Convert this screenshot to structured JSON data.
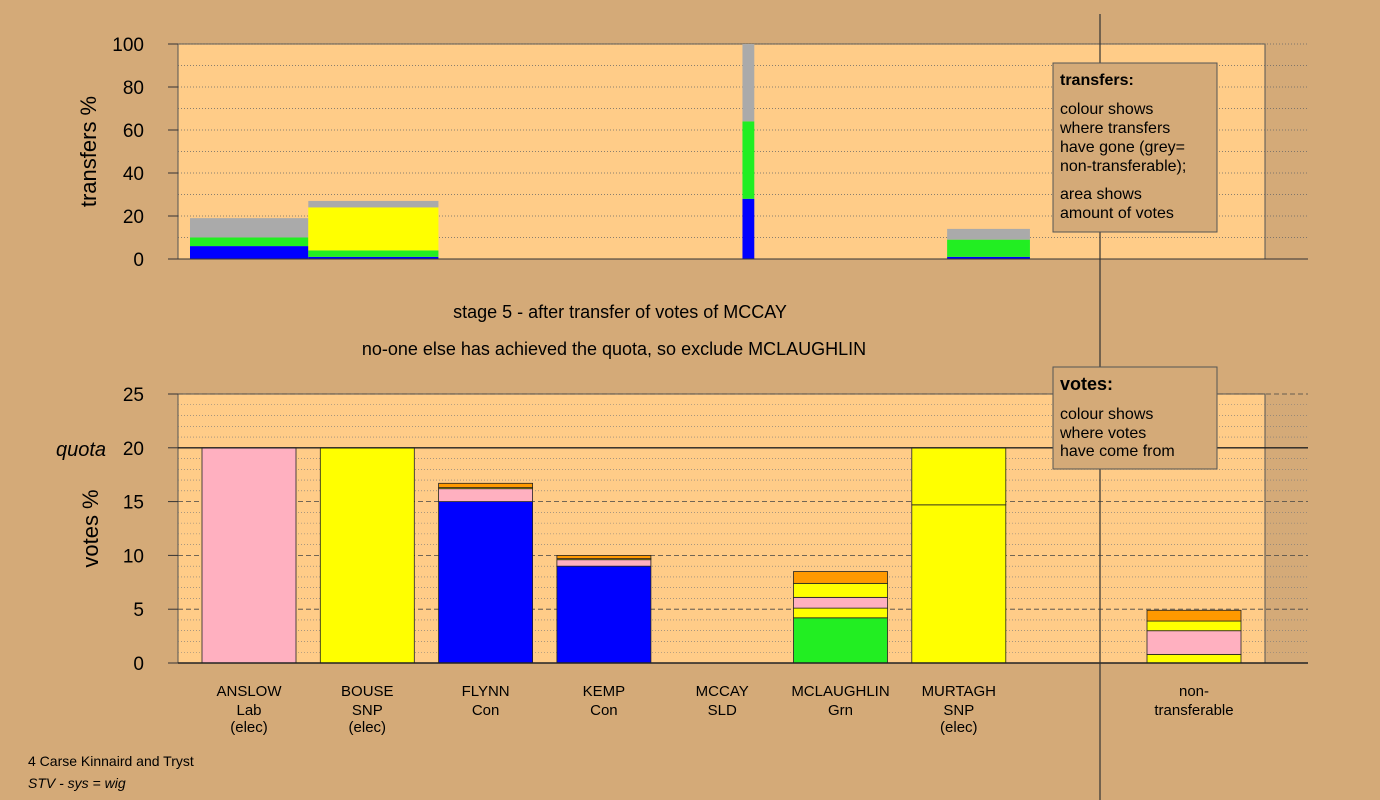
{
  "stage_title": "stage 5 - after transfer of votes of MCCAY",
  "stage_subtitle": "no-one else has achieved the quota, so exclude MCLAUGHLIN",
  "footer": {
    "line1": "4 Carse Kinnaird and Tryst",
    "line2": "STV - sys = wig"
  },
  "colors": {
    "background": "#d4aa78",
    "plot_bg": "#ffcc88",
    "Lab": "#ffb0c0",
    "SNP": "#ffff00",
    "Con": "#0000ff",
    "Grn": "#22ee22",
    "SLD": "#ff9900",
    "nontransferable": "#aaaaaa"
  },
  "transfers_legend": {
    "title": "transfers:",
    "lines": [
      "colour shows",
      "where transfers",
      "have gone (grey=",
      "non-transferable);",
      "area shows",
      "amount of votes"
    ]
  },
  "votes_legend": {
    "title": "votes:",
    "lines": [
      "colour shows",
      "where votes",
      "have come from"
    ]
  },
  "quota_label": "quota",
  "candidates": [
    {
      "name": "ANSLOW",
      "party": "Lab",
      "status": "(elec)"
    },
    {
      "name": "BOUSE",
      "party": "SNP",
      "status": "(elec)"
    },
    {
      "name": "FLYNN",
      "party": "Con",
      "status": ""
    },
    {
      "name": "KEMP",
      "party": "Con",
      "status": ""
    },
    {
      "name": "MCCAY",
      "party": "SLD",
      "status": ""
    },
    {
      "name": "MCLAUGHLIN",
      "party": "Grn",
      "status": ""
    },
    {
      "name": "MURTAGH",
      "party": "SNP",
      "status": "(elec)"
    }
  ],
  "nontransferable_label": {
    "line1": "non-",
    "line2": "transferable"
  },
  "chart_data": [
    {
      "type": "bar",
      "ylabel": "transfers %",
      "ylim": [
        0,
        100
      ],
      "yticks": [
        0,
        20,
        40,
        60,
        80,
        100
      ],
      "bars": [
        {
          "candidate": "ANSLOW",
          "x0": 0.0,
          "x1": 1.0,
          "segments": [
            {
              "party": "Con",
              "value": 6
            },
            {
              "party": "Grn",
              "value": 4
            },
            {
              "party": "nontransferable",
              "value": 9
            }
          ]
        },
        {
          "candidate": "BOUSE",
          "x0": 1.0,
          "x1": 2.1,
          "segments": [
            {
              "party": "Con",
              "value": 1
            },
            {
              "party": "Grn",
              "value": 3
            },
            {
              "party": "SNP",
              "value": 20
            },
            {
              "party": "nontransferable",
              "value": 3
            }
          ]
        },
        {
          "candidate": "MCCAY",
          "x0": 4.67,
          "x1": 4.77,
          "segments": [
            {
              "party": "Con",
              "value": 28
            },
            {
              "party": "Grn",
              "value": 36
            },
            {
              "party": "nontransferable",
              "value": 36
            }
          ]
        },
        {
          "candidate": "MURTAGH",
          "x0": 6.4,
          "x1": 7.1,
          "segments": [
            {
              "party": "Con",
              "value": 1
            },
            {
              "party": "Grn",
              "value": 8
            },
            {
              "party": "nontransferable",
              "value": 5
            }
          ]
        }
      ]
    },
    {
      "type": "bar",
      "ylabel": "votes %",
      "ylim": [
        0,
        25
      ],
      "yticks": [
        0,
        5,
        10,
        15,
        20,
        25
      ],
      "quota": 20,
      "categories": [
        "ANSLOW",
        "BOUSE",
        "FLYNN",
        "KEMP",
        "MCCAY",
        "MCLAUGHLIN",
        "MURTAGH",
        "non-transferable"
      ],
      "stacks": [
        [
          {
            "party": "Lab",
            "value": 20
          }
        ],
        [
          {
            "party": "SNP",
            "value": 20
          }
        ],
        [
          {
            "party": "Con",
            "value": 15.0
          },
          {
            "party": "Lab",
            "value": 1.2
          },
          {
            "party": "SNP",
            "value": 0.1
          },
          {
            "party": "SLD",
            "value": 0.4
          }
        ],
        [
          {
            "party": "Con",
            "value": 9.0
          },
          {
            "party": "Lab",
            "value": 0.6
          },
          {
            "party": "SNP",
            "value": 0.1
          },
          {
            "party": "SLD",
            "value": 0.3
          }
        ],
        [],
        [
          {
            "party": "Grn",
            "value": 4.2
          },
          {
            "party": "SNP",
            "value": 0.9
          },
          {
            "party": "Lab",
            "value": 1.0
          },
          {
            "party": "SNP",
            "value": 1.3
          },
          {
            "party": "SLD",
            "value": 1.1
          }
        ],
        [
          {
            "party": "SNP",
            "value": 14.7
          },
          {
            "party": "SNP",
            "value": 5.3
          }
        ],
        [
          {
            "party": "SNP",
            "value": 0.8
          },
          {
            "party": "Lab",
            "value": 2.2
          },
          {
            "party": "SNP",
            "value": 0.9
          },
          {
            "party": "SLD",
            "value": 1.0
          }
        ]
      ]
    }
  ]
}
